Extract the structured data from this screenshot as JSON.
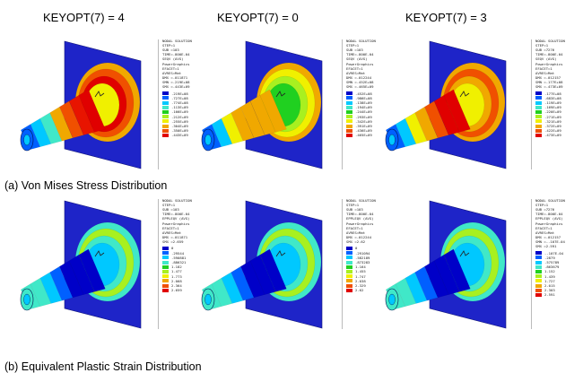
{
  "headers": [
    "KEYOPT(7) = 4",
    "KEYOPT(7) =  0",
    "KEYOPT(7) = 3"
  ],
  "captions": [
    "(a) Von Mises Stress Distribution",
    "(b) Equivalent Plastic Strain Distribution"
  ],
  "colors": {
    "plate": "#1e24c8",
    "contours": [
      "#0000c8",
      "#0060ff",
      "#00c8ff",
      "#40e8c8",
      "#20d020",
      "#a8f020",
      "#f0f000",
      "#f0a800",
      "#f05000",
      "#e00000"
    ]
  },
  "panels": [
    {
      "id": "stress-k4",
      "row": 0,
      "col": 0,
      "cone_colors": [
        "#e00000",
        "#e81400",
        "#f05000",
        "#f0a800",
        "#40e8c8",
        "#00c8ff",
        "#0060ff"
      ],
      "flange_colors": [
        "#f0a800",
        "#f05000",
        "#e00000",
        "#f0f000"
      ],
      "legend": {
        "lines": [
          "NODAL SOLUTION",
          "STEP=1",
          "SUB =103",
          "TIME=.800E-04",
          "SEQV     (AVG)",
          "PowerGraphics",
          "EFACET=1",
          "AVRES=Mat",
          "DMX =.011871",
          "SMN =.219E+08",
          "SMX =.443E+09"
        ],
        "values": [
          ".219E+08",
          ".727E+08",
          ".774E+08",
          ".113E+09",
          ".166E+09",
          ".212E+09",
          ".255E+09",
          ".304E+09",
          ".350E+09",
          ".443E+09"
        ]
      }
    },
    {
      "id": "stress-k0",
      "row": 0,
      "col": 1,
      "cone_colors": [
        "#f0a800",
        "#f0a800",
        "#f0a800",
        "#f0a800",
        "#f0f000",
        "#00c8ff",
        "#0060ff"
      ],
      "flange_colors": [
        "#f0a800",
        "#f0f000",
        "#a8f020",
        "#20d020"
      ],
      "legend": {
        "lines": [
          "NODAL SOLUTION",
          "STEP=1",
          "SUB =103",
          "TIME=.800E-04",
          "SEQV     (AVG)",
          "PowerGraphics",
          "EFACET=1",
          "AVRES=Mat",
          "DMX =.012244",
          "SMN =.452E+08",
          "SMX =.465E+09"
        ],
        "values": [
          ".452E+08",
          ".986E+08",
          ".138E+09",
          ".194E+09",
          ".244E+09",
          ".293E+09",
          ".342E+09",
          ".391E+09",
          ".436E+09",
          ".465E+09"
        ]
      }
    },
    {
      "id": "stress-k3",
      "row": 0,
      "col": 2,
      "cone_colors": [
        "#e00000",
        "#e00000",
        "#f05000",
        "#f0a800",
        "#f0f000",
        "#00c8ff",
        "#0060ff"
      ],
      "flange_colors": [
        "#f0a800",
        "#f05000",
        "#f0a800",
        "#f0f000"
      ],
      "legend": {
        "lines": [
          "NODAL SOLUTION",
          "STEP=1",
          "SUB =7276",
          "TIME=.800E-04",
          "SEQV     (AVG)",
          "PowerGraphics",
          "EFACET=1",
          "AVRES=Mat",
          "DMX =.012157",
          "SMN =.177E+08",
          "SMX =.473E+09"
        ],
        "values": [
          ".177E+08",
          ".683E+08",
          ".119E+09",
          ".169E+09",
          ".220E+09",
          ".271E+09",
          ".321E+09",
          ".372E+09",
          ".422E+09",
          ".473E+09"
        ]
      }
    },
    {
      "id": "strain-k4",
      "row": 1,
      "col": 0,
      "cone_colors": [
        "#0000c8",
        "#0000c8",
        "#0000c8",
        "#0060ff",
        "#00c8ff",
        "#40e8c8",
        "#40e8c8"
      ],
      "flange_colors": [
        "#40e8c8",
        "#a8f020",
        "#40e8c8",
        "#00c8ff"
      ],
      "legend": {
        "lines": [
          "NODAL SOLUTION",
          "STEP=1",
          "SUB =103",
          "TIME=.800E-04",
          "EPPLEQV  (AVG)",
          "PowerGraphics",
          "EFACET=1",
          "AVRES=Mat",
          "DMX =.011871",
          "SMX =2.659"
        ],
        "values": [
          "0",
          ".29544",
          ".590881",
          ".886321",
          "1.182",
          "1.477",
          "1.773",
          "2.068",
          "2.364",
          "2.659"
        ]
      }
    },
    {
      "id": "strain-k0",
      "row": 1,
      "col": 1,
      "cone_colors": [
        "#0000c8",
        "#0000c8",
        "#0000c8",
        "#0060ff",
        "#00c8ff",
        "#40e8c8",
        "#40e8c8"
      ],
      "flange_colors": [
        "#40e8c8",
        "#a8f020",
        "#40e8c8",
        "#00c8ff"
      ],
      "legend": {
        "lines": [
          "NODAL SOLUTION",
          "STEP=1",
          "SUB =103",
          "TIME=.800E-04",
          "EPPLEQV  (AVG)",
          "PowerGraphics",
          "EFACET=1",
          "AVRES=Mat",
          "DMX =.012244",
          "SMX =2.62"
        ],
        "values": [
          "0",
          ".291094",
          ".582189",
          ".873283",
          "1.164",
          "1.455",
          "1.747",
          "2.038",
          "2.329",
          "2.62"
        ]
      }
    },
    {
      "id": "strain-k3",
      "row": 1,
      "col": 2,
      "cone_colors": [
        "#0000c8",
        "#0000c8",
        "#0000c8",
        "#0060ff",
        "#00c8ff",
        "#40e8c8",
        "#40e8c8"
      ],
      "flange_colors": [
        "#40e8c8",
        "#a8f020",
        "#40e8c8",
        "#00c8ff"
      ],
      "legend": {
        "lines": [
          "NODAL SOLUTION",
          "STEP=1",
          "SUB =7276",
          "TIME=.800E-04",
          "EPPLEQV  (AVG)",
          "PowerGraphics",
          "EFACET=1",
          "AVRES=Mat",
          "DMX =.012157",
          "SMN =-.107E-04",
          "SMX =2.591"
        ],
        "values": [
          "-.107E-04",
          ".2879",
          ".575789",
          ".863679",
          "1.152",
          "1.439",
          "1.727",
          "2.015",
          "2.303",
          "2.591"
        ]
      }
    }
  ]
}
